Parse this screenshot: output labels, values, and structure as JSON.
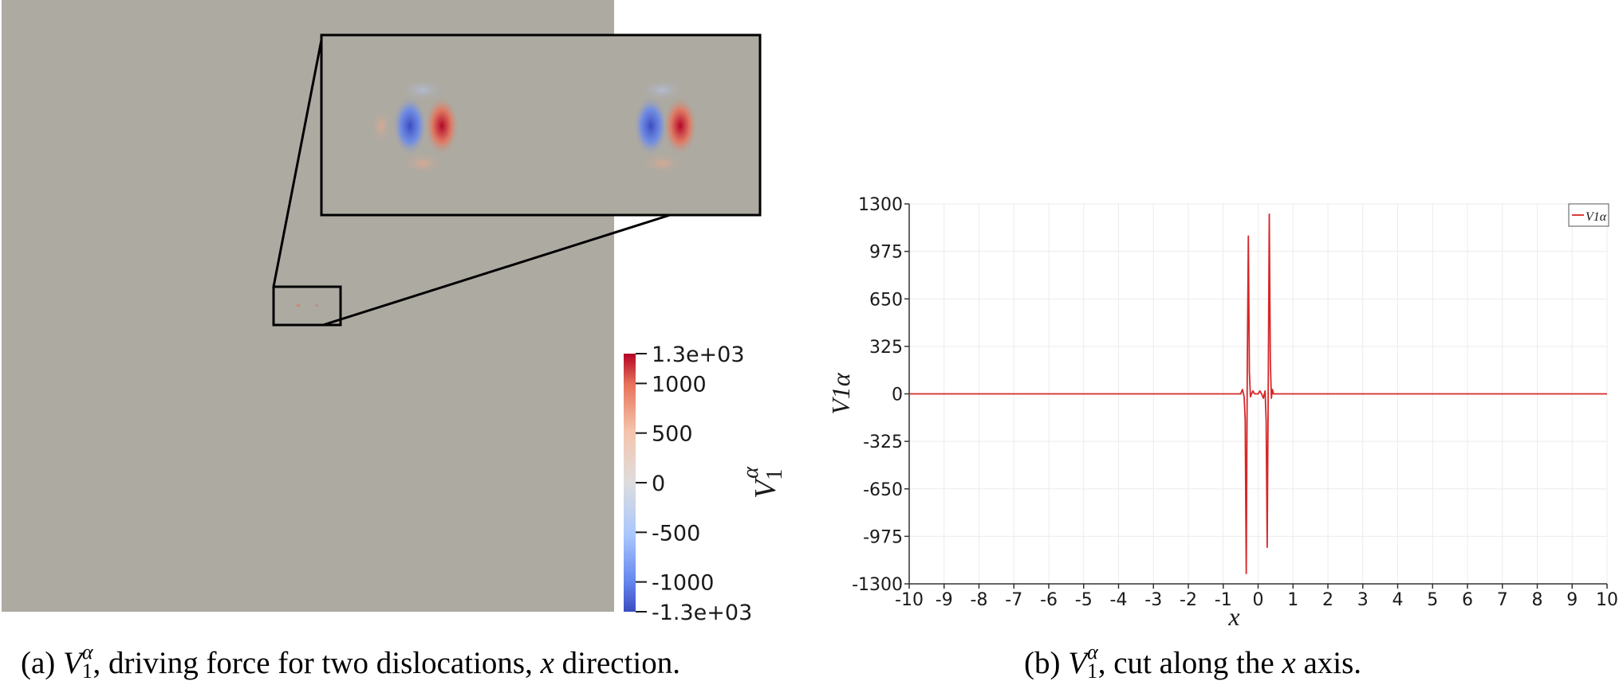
{
  "panel_a": {
    "caption": "(a) V1α, driving force for two dislocations, x direction.",
    "caption_parts": {
      "label": "(a)",
      "symbol_base": "V",
      "symbol_sub": "1",
      "symbol_sup": "α",
      "text_1": ", driving force for two dislocations, ",
      "var": "x",
      "text_2": " direction."
    },
    "colorbar": {
      "title": "V1α",
      "title_base": "V",
      "title_sub": "1",
      "title_sup": "α",
      "labels": [
        "1.3e+03",
        "1000",
        "500",
        "0",
        "-500",
        "-1000",
        "-1.3e+03"
      ],
      "values": [
        1300,
        1000,
        500,
        0,
        -500,
        -1000,
        -1300
      ],
      "min": -1300,
      "max": 1300,
      "colormap": [
        "#b40426",
        "#e7745b",
        "#f5c4ac",
        "#dddddd",
        "#aac7fd",
        "#6788ee",
        "#3b4cc0"
      ]
    },
    "field_color": "#adaaa2"
  },
  "panel_b": {
    "caption": "(b) V1α, cut along the x axis.",
    "caption_parts": {
      "label": "(b)",
      "symbol_base": "V",
      "symbol_sub": "1",
      "symbol_sup": "α",
      "text_1": ", cut along the ",
      "var": "x",
      "text_2": " axis."
    }
  },
  "chart_data": {
    "type": "line",
    "title": "",
    "xlabel": "x",
    "ylabel": "V1α",
    "xlim": [
      -10,
      10
    ],
    "ylim": [
      -1300,
      1300
    ],
    "x_ticks": [
      -10,
      -9,
      -8,
      -7,
      -6,
      -5,
      -4,
      -3,
      -2,
      -1,
      0,
      1,
      2,
      3,
      4,
      5,
      6,
      7,
      8,
      9,
      10
    ],
    "y_ticks": [
      1300,
      975,
      650,
      325,
      0,
      -325,
      -650,
      -975,
      -1300
    ],
    "grid": true,
    "legend": "top-right",
    "series": [
      {
        "name": "V1α",
        "color": "#d62728",
        "x": [
          -10,
          -0.5,
          -0.45,
          -0.4,
          -0.37,
          -0.34,
          -0.31,
          -0.28,
          -0.25,
          -0.22,
          -0.19,
          -0.15,
          -0.1,
          -0.05,
          0,
          0.05,
          0.1,
          0.15,
          0.2,
          0.23,
          0.26,
          0.29,
          0.32,
          0.35,
          0.38,
          0.41,
          0.44,
          0.5,
          10
        ],
        "y": [
          0,
          0,
          30,
          -20,
          -180,
          -1230,
          200,
          1080,
          150,
          -20,
          0,
          20,
          0,
          0,
          0,
          20,
          0,
          -30,
          20,
          -180,
          -1050,
          40,
          1230,
          230,
          -30,
          30,
          0,
          0,
          0
        ]
      }
    ]
  }
}
